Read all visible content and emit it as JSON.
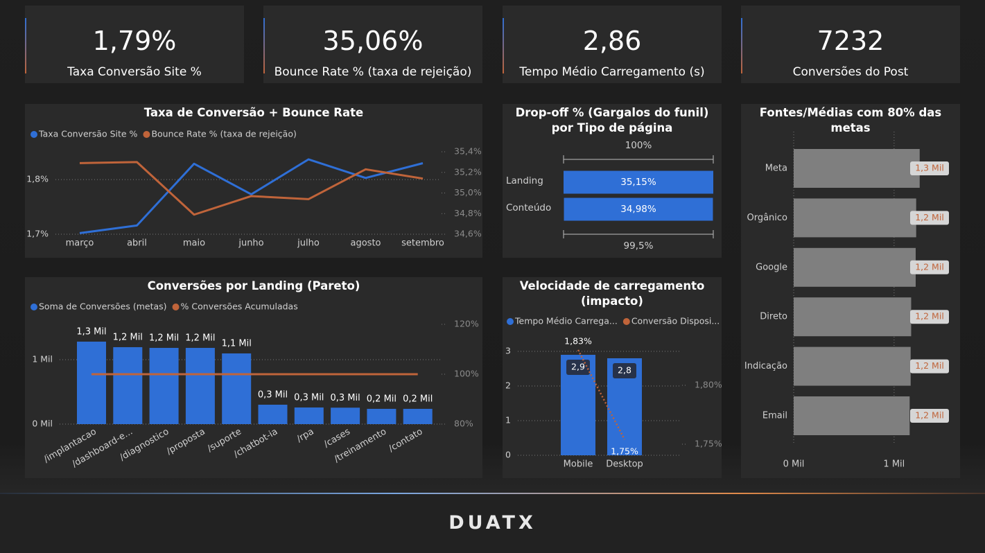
{
  "kpis": [
    {
      "value": "1,79%",
      "label": "Taxa Conversão Site %"
    },
    {
      "value": "35,06%",
      "label": "Bounce Rate % (taxa de rejeição)"
    },
    {
      "value": "2,86",
      "label": "Tempo Médio Carregamento (s)"
    },
    {
      "value": "7232",
      "label": "Conversões do Post"
    }
  ],
  "footer": {
    "logo": "DUATX"
  },
  "chart_data": [
    {
      "type": "line",
      "title": "Taxa de Conversão + Bounce Rate",
      "categories": [
        "março",
        "abril",
        "maio",
        "junho",
        "julho",
        "agosto",
        "setembro"
      ],
      "series": [
        {
          "name": "Taxa Conversão Site %",
          "color": "#2f6fd6",
          "values": [
            1.702,
            1.716,
            1.829,
            1.773,
            1.837,
            1.803,
            1.83
          ]
        },
        {
          "name": "Bounce Rate % (taxa de rejeição)",
          "color": "#c0643a",
          "axis": "y2",
          "values": [
            35.29,
            35.3,
            34.79,
            34.97,
            34.94,
            35.23,
            35.14
          ]
        }
      ],
      "ylim": [
        1.7,
        1.856
      ],
      "yticks": [
        {
          "value": 1.7,
          "label": "1,7%"
        },
        {
          "value": 1.8,
          "label": "1,8%"
        }
      ],
      "y2lim": [
        34.6,
        35.427
      ],
      "y2ticks": [
        {
          "value": 34.6,
          "label": "34,6%"
        },
        {
          "value": 34.8,
          "label": "34,8%"
        },
        {
          "value": 35.0,
          "label": "35,0%"
        },
        {
          "value": 35.2,
          "label": "35,2%"
        },
        {
          "value": 35.4,
          "label": "35,4%"
        }
      ],
      "grid": true,
      "legend": "top-left"
    },
    {
      "type": "funnel",
      "title": "Drop-off % (Gargalos do funil) por Tipo de página",
      "top_label": "100%",
      "bottom_label": "99,5%",
      "categories": [
        "Landing",
        "Conteúdo"
      ],
      "values": [
        35.15,
        34.98
      ],
      "value_labels": [
        "35,15%",
        "34,98%"
      ],
      "color": "#2f6fd6"
    },
    {
      "type": "bar",
      "orientation": "horizontal",
      "title": "Fontes/Médias com 80% das metas",
      "categories": [
        "Meta",
        "Orgânico",
        "Google",
        "Direto",
        "Indicação",
        "Email"
      ],
      "values": [
        1255,
        1220,
        1215,
        1170,
        1165,
        1155
      ],
      "value_labels": [
        "1,3 Mil",
        "1,2 Mil",
        "1,2 Mil",
        "1,2 Mil",
        "1,2 Mil",
        "1,2 Mil"
      ],
      "color": "#7f7f7f",
      "label_color": "#c0643a",
      "xlim": [
        0,
        1650
      ],
      "xticks": [
        {
          "value": 0,
          "label": "0 Mil"
        },
        {
          "value": 1000,
          "label": "1 Mil"
        }
      ],
      "grid": true
    },
    {
      "type": "combo",
      "title": "Conversões por Landing (Pareto)",
      "categories": [
        "/implantacao",
        "/dashboard-e...",
        "/diagnostico",
        "/proposta",
        "/suporte",
        "/chatbot-ia",
        "/rpa",
        "/cases",
        "/treinamento",
        "/contato"
      ],
      "series": [
        {
          "name": "Soma de Conversões (metas)",
          "color": "#2f6fd6",
          "kind": "bar",
          "values": [
            1280,
            1194,
            1183,
            1183,
            1097,
            301,
            258,
            255,
            237,
            237
          ],
          "value_labels": [
            "1,3 Mil",
            "1,2 Mil",
            "1,2 Mil",
            "1,2 Mil",
            "1,1 Mil",
            "0,3 Mil",
            "0,3 Mil",
            "0,3 Mil",
            "0,2 Mil",
            "0,2 Mil"
          ]
        },
        {
          "name": "% Conversões Acumuladas",
          "color": "#c0643a",
          "kind": "line",
          "axis": "y2",
          "values": [
            100,
            100,
            100,
            100,
            100,
            100,
            100,
            100,
            100,
            100
          ]
        }
      ],
      "ylim": [
        0,
        1610
      ],
      "yticks": [
        {
          "value": 0,
          "label": "0 Mil"
        },
        {
          "value": 1000,
          "label": "1 Mil"
        }
      ],
      "y2lim": [
        80,
        121.6
      ],
      "y2ticks": [
        {
          "value": 80,
          "label": "80%"
        },
        {
          "value": 100,
          "label": "100%"
        },
        {
          "value": 120,
          "label": "120%"
        }
      ],
      "grid": true,
      "legend": "top-left"
    },
    {
      "type": "combo",
      "title": "Velocidade de carregamento (impacto)",
      "categories": [
        "Mobile",
        "Desktop"
      ],
      "series": [
        {
          "name": "Tempo Médio Carrega...",
          "color": "#2f6fd6",
          "kind": "bar",
          "values": [
            2.9,
            2.8
          ],
          "value_labels": [
            "2,9",
            "2,8"
          ]
        },
        {
          "name": "Conversão Disposi...",
          "color": "#c0643a",
          "kind": "line",
          "axis": "y2",
          "line_style": "dotted",
          "values": [
            1.83,
            1.754
          ],
          "value_labels": [
            "1,83%",
            "1,75%"
          ]
        }
      ],
      "ylim": [
        0,
        3.34
      ],
      "yticks": [
        0,
        1,
        2,
        3
      ],
      "y2lim": [
        1.7406,
        1.8388
      ],
      "y2ticks": [
        {
          "value": 1.75,
          "label": "1,75%"
        },
        {
          "value": 1.8,
          "label": "1,80%"
        }
      ],
      "grid": true,
      "legend": "top-left"
    }
  ]
}
